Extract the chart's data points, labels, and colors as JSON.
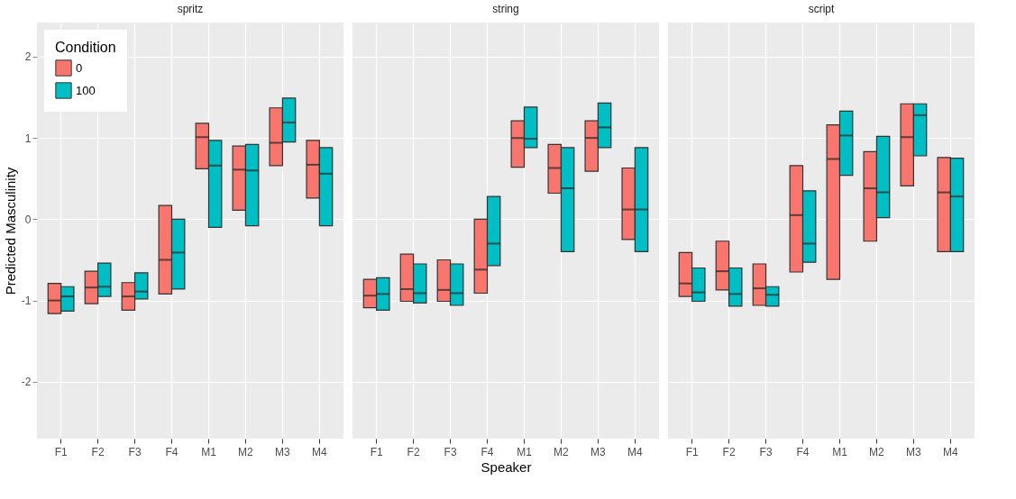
{
  "chart_data": [
    {
      "type": "box",
      "title": "spritz",
      "ylabel": "Predicted Masculinity",
      "legend_title": "Condition",
      "legend": "top left",
      "grid": true,
      "ylim": [
        -2.7,
        2.42
      ],
      "yticks": [
        -2,
        -1,
        0,
        1,
        2
      ],
      "categories": [
        "F1",
        "F2",
        "F3",
        "F4",
        "M1",
        "M2",
        "M3",
        "M4"
      ],
      "series": [
        {
          "name": "0",
          "color": "#f8766d",
          "boxes": [
            {
              "low": -1.16,
              "q1": -1.16,
              "median": -1.0,
              "q3": -0.79,
              "high": -0.79
            },
            {
              "low": -1.04,
              "q1": -1.04,
              "median": -0.84,
              "q3": -0.64,
              "high": -0.64
            },
            {
              "low": -1.12,
              "q1": -1.12,
              "median": -0.95,
              "q3": -0.78,
              "high": -0.78
            },
            {
              "low": -0.92,
              "q1": -0.92,
              "median": -0.5,
              "q3": 0.17,
              "high": 0.17
            },
            {
              "low": 0.62,
              "q1": 0.62,
              "median": 1.01,
              "q3": 1.18,
              "high": 1.18
            },
            {
              "low": 0.11,
              "q1": 0.11,
              "median": 0.61,
              "q3": 0.9,
              "high": 0.9
            },
            {
              "low": 0.66,
              "q1": 0.66,
              "median": 0.94,
              "q3": 1.37,
              "high": 1.37
            },
            {
              "low": 0.26,
              "q1": 0.26,
              "median": 0.67,
              "q3": 0.97,
              "high": 0.97
            }
          ]
        },
        {
          "name": "100",
          "color": "#00bfc4",
          "boxes": [
            {
              "low": -1.13,
              "q1": -1.13,
              "median": -0.95,
              "q3": -0.83,
              "high": -0.83
            },
            {
              "low": -0.95,
              "q1": -0.95,
              "median": -0.83,
              "q3": -0.54,
              "high": -0.54
            },
            {
              "low": -0.98,
              "q1": -0.98,
              "median": -0.89,
              "q3": -0.66,
              "high": -0.66
            },
            {
              "low": -0.86,
              "q1": -0.86,
              "median": -0.41,
              "q3": 0.0,
              "high": 0.0
            },
            {
              "low": -0.1,
              "q1": -0.1,
              "median": 0.66,
              "q3": 0.97,
              "high": 0.97
            },
            {
              "low": -0.08,
              "q1": -0.08,
              "median": 0.6,
              "q3": 0.92,
              "high": 0.92
            },
            {
              "low": 0.95,
              "q1": 0.95,
              "median": 1.19,
              "q3": 1.49,
              "high": 1.49
            },
            {
              "low": -0.08,
              "q1": -0.08,
              "median": 0.56,
              "q3": 0.88,
              "high": 0.88
            }
          ]
        }
      ]
    },
    {
      "type": "box",
      "title": "string",
      "xlabel": "Speaker",
      "grid": true,
      "tick_labels": "x",
      "ylim": [
        -2.7,
        2.42
      ],
      "yticks": [
        -2,
        -1,
        0,
        1,
        2
      ],
      "categories": [
        "F1",
        "F2",
        "F3",
        "F4",
        "M1",
        "M2",
        "M3",
        "M4"
      ],
      "series": [
        {
          "name": "0",
          "color": "#f8766d",
          "boxes": [
            {
              "low": -1.09,
              "q1": -1.09,
              "median": -0.94,
              "q3": -0.74,
              "high": -0.74
            },
            {
              "low": -1.01,
              "q1": -1.01,
              "median": -0.86,
              "q3": -0.43,
              "high": -0.43
            },
            {
              "low": -1.01,
              "q1": -1.01,
              "median": -0.87,
              "q3": -0.5,
              "high": -0.5
            },
            {
              "low": -0.91,
              "q1": -0.91,
              "median": -0.62,
              "q3": 0.0,
              "high": 0.0
            },
            {
              "low": 0.64,
              "q1": 0.64,
              "median": 1.0,
              "q3": 1.21,
              "high": 1.21
            },
            {
              "low": 0.32,
              "q1": 0.32,
              "median": 0.63,
              "q3": 0.92,
              "high": 0.92
            },
            {
              "low": 0.59,
              "q1": 0.59,
              "median": 1.0,
              "q3": 1.21,
              "high": 1.21
            },
            {
              "low": -0.25,
              "q1": -0.25,
              "median": 0.12,
              "q3": 0.63,
              "high": 0.63
            }
          ]
        },
        {
          "name": "100",
          "color": "#00bfc4",
          "boxes": [
            {
              "low": -1.12,
              "q1": -1.12,
              "median": -0.92,
              "q3": -0.72,
              "high": -0.72
            },
            {
              "low": -1.03,
              "q1": -1.03,
              "median": -0.91,
              "q3": -0.55,
              "high": -0.55
            },
            {
              "low": -1.06,
              "q1": -1.06,
              "median": -0.91,
              "q3": -0.55,
              "high": -0.55
            },
            {
              "low": -0.57,
              "q1": -0.57,
              "median": -0.3,
              "q3": 0.28,
              "high": 0.28
            },
            {
              "low": 0.88,
              "q1": 0.88,
              "median": 0.99,
              "q3": 1.38,
              "high": 1.38
            },
            {
              "low": -0.4,
              "q1": -0.4,
              "median": 0.38,
              "q3": 0.88,
              "high": 0.88
            },
            {
              "low": 0.88,
              "q1": 0.88,
              "median": 1.13,
              "q3": 1.43,
              "high": 1.43
            },
            {
              "low": -0.4,
              "q1": -0.4,
              "median": 0.12,
              "q3": 0.88,
              "high": 0.88
            }
          ]
        }
      ]
    },
    {
      "type": "box",
      "title": "script",
      "grid": true,
      "tick_labels": "x",
      "ylim": [
        -2.7,
        2.42
      ],
      "yticks": [
        -2,
        -1,
        0,
        1,
        2
      ],
      "categories": [
        "F1",
        "F2",
        "F3",
        "F4",
        "M1",
        "M2",
        "M3",
        "M4"
      ],
      "series": [
        {
          "name": "0",
          "color": "#f8766d",
          "boxes": [
            {
              "low": -0.95,
              "q1": -0.95,
              "median": -0.79,
              "q3": -0.41,
              "high": -0.41
            },
            {
              "low": -0.87,
              "q1": -0.87,
              "median": -0.64,
              "q3": -0.27,
              "high": -0.27
            },
            {
              "low": -1.06,
              "q1": -1.06,
              "median": -0.85,
              "q3": -0.55,
              "high": -0.55
            },
            {
              "low": -0.65,
              "q1": -0.65,
              "median": 0.05,
              "q3": 0.66,
              "high": 0.66
            },
            {
              "low": -0.74,
              "q1": -0.74,
              "median": 0.74,
              "q3": 1.16,
              "high": 1.16
            },
            {
              "low": -0.27,
              "q1": -0.27,
              "median": 0.38,
              "q3": 0.83,
              "high": 0.83
            },
            {
              "low": 0.41,
              "q1": 0.41,
              "median": 1.01,
              "q3": 1.42,
              "high": 1.42
            },
            {
              "low": -0.4,
              "q1": -0.4,
              "median": 0.33,
              "q3": 0.76,
              "high": 0.76
            }
          ]
        },
        {
          "name": "100",
          "color": "#00bfc4",
          "boxes": [
            {
              "low": -1.01,
              "q1": -1.01,
              "median": -0.9,
              "q3": -0.6,
              "high": -0.6
            },
            {
              "low": -1.07,
              "q1": -1.07,
              "median": -0.92,
              "q3": -0.6,
              "high": -0.6
            },
            {
              "low": -1.07,
              "q1": -1.07,
              "median": -0.93,
              "q3": -0.83,
              "high": -0.83
            },
            {
              "low": -0.53,
              "q1": -0.53,
              "median": -0.3,
              "q3": 0.35,
              "high": 0.35
            },
            {
              "low": 0.54,
              "q1": 0.54,
              "median": 1.03,
              "q3": 1.33,
              "high": 1.33
            },
            {
              "low": 0.02,
              "q1": 0.02,
              "median": 0.33,
              "q3": 1.02,
              "high": 1.02
            },
            {
              "low": 0.78,
              "q1": 0.78,
              "median": 1.28,
              "q3": 1.42,
              "high": 1.42
            },
            {
              "low": -0.4,
              "q1": -0.4,
              "median": 0.28,
              "q3": 0.75,
              "high": 0.75
            }
          ]
        }
      ]
    }
  ]
}
